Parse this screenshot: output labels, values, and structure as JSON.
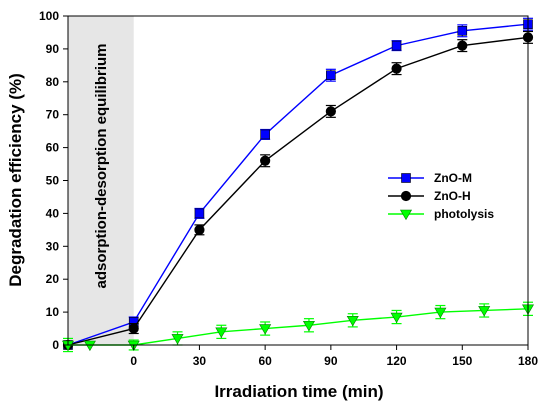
{
  "chart_data": {
    "type": "line",
    "title": "",
    "xlabel": "Irradiation time (min)",
    "ylabel": "Degradation efficiency (%)",
    "xlim": [
      -30,
      180
    ],
    "ylim": [
      0,
      100
    ],
    "xticks": [
      0,
      30,
      60,
      90,
      120,
      150,
      180
    ],
    "yticks": [
      0,
      10,
      20,
      30,
      40,
      50,
      60,
      70,
      80,
      90,
      100
    ],
    "grid": false,
    "legend_position": "right",
    "shaded_region": {
      "x_range": [
        -30,
        0
      ],
      "label": "adsorption-desorption equilibrium",
      "color": "#e6e6e6"
    },
    "series": [
      {
        "name": "ZnO-M",
        "color": "#0000ff",
        "marker": "square",
        "x": [
          -30,
          0,
          30,
          60,
          90,
          120,
          150,
          180
        ],
        "y": [
          0,
          7,
          40,
          64,
          82,
          91,
          95.5,
          97.5
        ],
        "error": [
          0,
          1.5,
          1.5,
          1.5,
          1.8,
          1.5,
          1.8,
          1.8
        ]
      },
      {
        "name": "ZnO-H",
        "color": "#000000",
        "marker": "circle",
        "x": [
          -30,
          0,
          30,
          60,
          90,
          120,
          150,
          180
        ],
        "y": [
          0,
          5,
          35,
          56,
          71,
          84,
          91,
          93.5
        ],
        "error": [
          0,
          1.5,
          1.5,
          1.8,
          1.8,
          1.8,
          1.8,
          1.8
        ]
      },
      {
        "name": "photolysis",
        "color": "#00ff00",
        "marker": "triangle-down",
        "x": [
          -30,
          -20,
          0,
          20,
          40,
          60,
          80,
          100,
          120,
          140,
          160,
          180
        ],
        "y": [
          0,
          0,
          0,
          2,
          4,
          5,
          6,
          7.5,
          8.5,
          10,
          10.5,
          11
        ],
        "error": [
          2,
          0,
          1.5,
          2,
          2,
          2,
          2,
          2,
          2,
          2,
          2,
          2
        ]
      }
    ]
  }
}
